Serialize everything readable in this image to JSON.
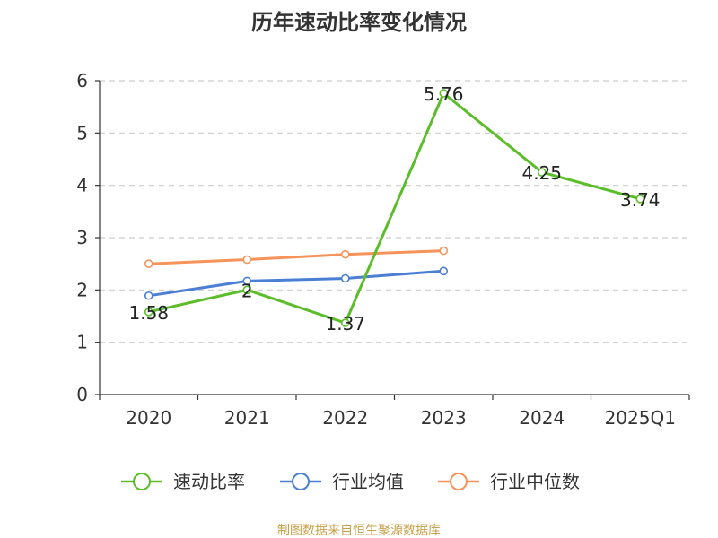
{
  "chart_data": {
    "type": "line",
    "title": "历年速动比率变化情况",
    "categories": [
      "2020",
      "2021",
      "2022",
      "2023",
      "2024",
      "2025Q1"
    ],
    "ylim": [
      0,
      6
    ],
    "yticks": [
      0,
      1,
      2,
      3,
      4,
      5,
      6
    ],
    "grid": true,
    "legend_position": "bottom",
    "series": [
      {
        "name": "速动比率",
        "color": "#5cbd2b",
        "values": [
          1.58,
          2,
          1.37,
          5.76,
          4.25,
          3.74
        ],
        "labels": [
          "1.58",
          "2",
          "1.37",
          "5.76",
          "4.25",
          "3.74"
        ]
      },
      {
        "name": "行业均值",
        "color": "#4a7fd4",
        "values": [
          1.89,
          2.17,
          2.22,
          2.36,
          null,
          null
        ]
      },
      {
        "name": "行业中位数",
        "color": "#f5935a",
        "values": [
          2.5,
          2.58,
          2.68,
          2.75,
          null,
          null
        ]
      }
    ],
    "source": "制图数据来自恒生聚源数据库"
  }
}
